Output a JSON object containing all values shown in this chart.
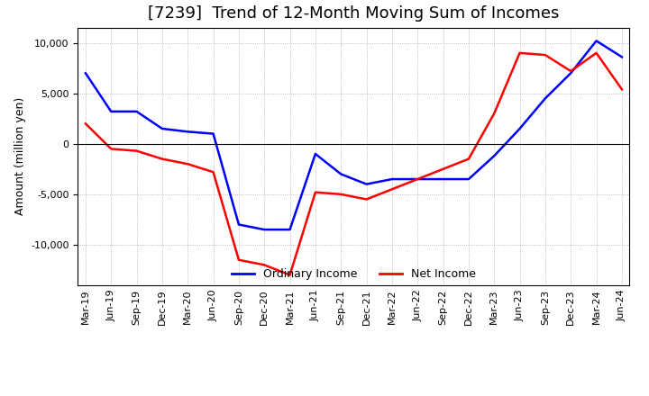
{
  "title": "[7239]  Trend of 12-Month Moving Sum of Incomes",
  "ylabel": "Amount (million yen)",
  "x_labels": [
    "Mar-19",
    "Jun-19",
    "Sep-19",
    "Dec-19",
    "Mar-20",
    "Jun-20",
    "Sep-20",
    "Dec-20",
    "Mar-21",
    "Jun-21",
    "Sep-21",
    "Dec-21",
    "Mar-22",
    "Jun-22",
    "Sep-22",
    "Dec-22",
    "Mar-23",
    "Jun-23",
    "Sep-23",
    "Dec-23",
    "Mar-24",
    "Jun-24"
  ],
  "ordinary_income": [
    7000,
    3200,
    3200,
    1500,
    1200,
    1000,
    -8000,
    -8500,
    -8500,
    -1000,
    -3000,
    -4000,
    -3500,
    -3500,
    -3500,
    -3500,
    -1200,
    1500,
    4500,
    7000,
    10200,
    8600
  ],
  "net_income": [
    2000,
    -500,
    -700,
    -1500,
    -2000,
    -2800,
    -11500,
    -12000,
    -13000,
    -4800,
    -5000,
    -5500,
    -4500,
    -3500,
    -2500,
    -1500,
    3000,
    9000,
    8800,
    7200,
    9000,
    5400
  ],
  "ordinary_color": "#0000FF",
  "net_color": "#FF0000",
  "ylim": [
    -14000,
    11500
  ],
  "yticks": [
    -10000,
    -5000,
    0,
    5000,
    10000
  ],
  "grid_color": "#aaaaaa",
  "background_color": "#ffffff",
  "title_fontsize": 13,
  "legend_labels": [
    "Ordinary Income",
    "Net Income"
  ]
}
